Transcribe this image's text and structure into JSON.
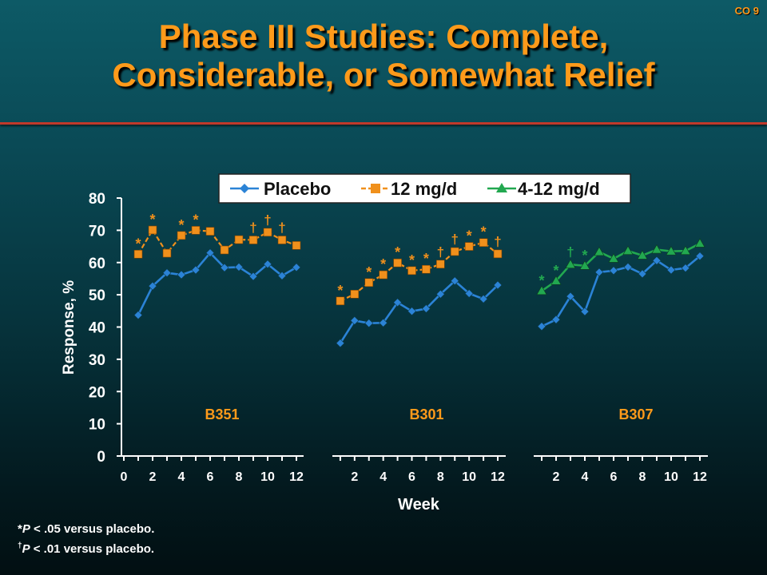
{
  "slide_id": "CO 9",
  "title_line1": "Phase III Studies: Complete,",
  "title_line2": "Considerable, or Somewhat Relief",
  "colors": {
    "placebo": "#2b83d6",
    "mg12": "#f0901c",
    "mg412": "#22a850",
    "title": "#ff9a1a"
  },
  "footnotes": {
    "note1_mark": "*",
    "note1_p": "P",
    "note1_text": " < .05 versus placebo.",
    "note2_mark": "†",
    "note2_p": "P",
    "note2_text": " < .01 versus placebo."
  },
  "chart_data": {
    "type": "line",
    "xlabel": "Week",
    "ylabel": "Response, %",
    "ylim": [
      0,
      80
    ],
    "yticks": [
      "0",
      "10",
      "20",
      "30",
      "40",
      "50",
      "60",
      "70",
      "80"
    ],
    "legend": [
      "Placebo",
      "12 mg/d",
      "4-12 mg/d"
    ],
    "legend_position": "top",
    "grid": false,
    "panels": [
      {
        "name": "B351",
        "xticks": [
          "0",
          "2",
          "4",
          "6",
          "8",
          "10",
          "12"
        ],
        "series": [
          {
            "name": "Placebo",
            "x": [
              1,
              2,
              3,
              4,
              5,
              6,
              7,
              8,
              9,
              10,
              11,
              12
            ],
            "y": [
              43.7,
              52.7,
              56.8,
              56.2,
              57.7,
              63.0,
              58.4,
              58.6,
              55.7,
              59.5,
              55.9,
              58.5
            ],
            "marks": [
              "",
              "",
              "",
              "",
              "",
              "",
              "",
              "",
              "",
              "",
              "",
              ""
            ]
          },
          {
            "name": "12 mg/d",
            "x": [
              1,
              2,
              3,
              4,
              5,
              6,
              7,
              8,
              9,
              10,
              11,
              12
            ],
            "y": [
              62.6,
              70.1,
              62.9,
              68.4,
              70.0,
              69.7,
              63.9,
              67.1,
              67.0,
              69.4,
              67.0,
              65.3
            ],
            "marks": [
              "*",
              "*",
              "",
              "*",
              "*",
              "",
              "",
              "",
              "†",
              "†",
              "†",
              ""
            ]
          }
        ]
      },
      {
        "name": "B301",
        "xticks": [
          "2",
          "4",
          "6",
          "8",
          "10",
          "12"
        ],
        "series": [
          {
            "name": "Placebo",
            "x": [
              1,
              2,
              3,
              4,
              5,
              6,
              7,
              8,
              9,
              10,
              11,
              12
            ],
            "y": [
              35.0,
              42.0,
              41.2,
              41.3,
              47.6,
              44.9,
              45.7,
              50.2,
              54.3,
              50.4,
              48.7,
              53.0
            ],
            "marks": [
              "",
              "",
              "",
              "",
              "",
              "",
              "",
              "",
              "",
              "",
              "",
              ""
            ]
          },
          {
            "name": "12 mg/d",
            "x": [
              1,
              2,
              3,
              4,
              5,
              6,
              7,
              8,
              9,
              10,
              11,
              12
            ],
            "y": [
              48.1,
              50.2,
              53.8,
              56.2,
              59.9,
              57.5,
              57.9,
              59.5,
              63.4,
              65.0,
              66.2,
              62.7
            ],
            "marks": [
              "*",
              "",
              "*",
              "*",
              "*",
              "*",
              "*",
              "†",
              "†",
              "*",
              "*",
              "†"
            ]
          }
        ]
      },
      {
        "name": "B307",
        "xticks": [
          "2",
          "4",
          "6",
          "8",
          "10",
          "12"
        ],
        "series": [
          {
            "name": "Placebo",
            "x": [
              1,
              2,
              3,
              4,
              5,
              6,
              7,
              8,
              9,
              10,
              11,
              12
            ],
            "y": [
              40.2,
              42.3,
              49.5,
              44.8,
              57.0,
              57.5,
              58.6,
              56.5,
              60.6,
              57.7,
              58.3,
              62.0
            ],
            "marks": [
              "",
              "",
              "",
              "",
              "",
              "",
              "",
              "",
              "",
              "",
              "",
              ""
            ]
          },
          {
            "name": "4-12 mg/d",
            "x": [
              1,
              2,
              3,
              4,
              5,
              6,
              7,
              8,
              9,
              10,
              11,
              12
            ],
            "y": [
              51.2,
              54.3,
              59.4,
              59.0,
              63.3,
              61.2,
              63.6,
              62.2,
              64.0,
              63.5,
              63.6,
              65.9
            ],
            "marks": [
              "*",
              "*",
              "†",
              "*",
              "",
              "",
              "",
              "",
              "",
              "",
              "",
              ""
            ]
          }
        ]
      }
    ]
  }
}
